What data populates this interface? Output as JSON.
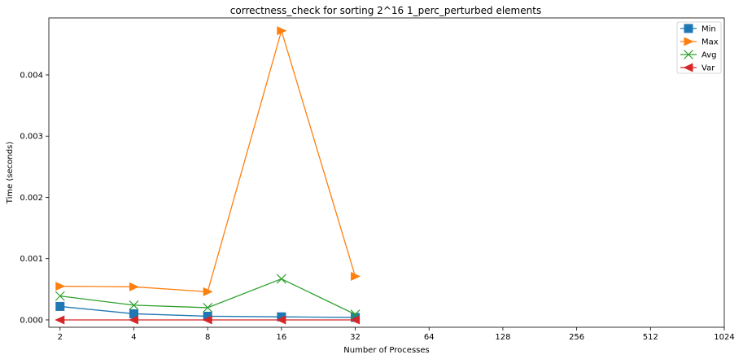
{
  "chart_data": {
    "type": "line",
    "title": "correctness_check for sorting 2^16 1_perc_perturbed elements",
    "xlabel": "Number of Processes",
    "ylabel": "Time (seconds)",
    "x_scale": "log2",
    "x_ticks": [
      "2",
      "4",
      "8",
      "16",
      "32",
      "64",
      "128",
      "256",
      "512",
      "1024"
    ],
    "x_tick_values": [
      2,
      4,
      8,
      16,
      32,
      64,
      128,
      256,
      512,
      1024
    ],
    "y_ticks": [
      "0.000",
      "0.001",
      "0.002",
      "0.003",
      "0.004"
    ],
    "y_tick_values": [
      0,
      0.001,
      0.002,
      0.003,
      0.004
    ],
    "ylim": [
      -0.00012,
      0.00493
    ],
    "xlim": [
      1.8,
      1024
    ],
    "grid": false,
    "legend_position": "top-right",
    "x": [
      2,
      4,
      8,
      16,
      32
    ],
    "series": [
      {
        "name": "Min",
        "color": "#1f77b4",
        "marker": "square",
        "values": [
          0.00022,
          0.0001,
          6e-05,
          5e-05,
          4e-05
        ]
      },
      {
        "name": "Max",
        "color": "#ff7f0e",
        "marker": "triangle-right",
        "values": [
          0.00055,
          0.00054,
          0.00046,
          0.00472,
          0.00071
        ]
      },
      {
        "name": "Avg",
        "color": "#2ca02c",
        "marker": "x",
        "values": [
          0.00039,
          0.00024,
          0.0002,
          0.00067,
          9e-05
        ]
      },
      {
        "name": "Var",
        "color": "#d62728",
        "marker": "triangle-left",
        "values": [
          0.0,
          0.0,
          0.0,
          0.0,
          0.0
        ]
      }
    ]
  }
}
